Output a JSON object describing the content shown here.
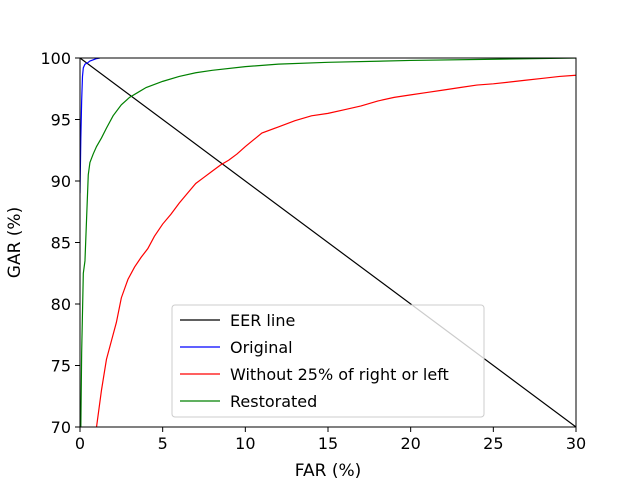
{
  "chart_data": {
    "type": "line",
    "title": "",
    "xlabel": "FAR (%)",
    "ylabel": "GAR (%)",
    "xlim": [
      0,
      30
    ],
    "ylim": [
      70,
      100
    ],
    "xticks": [
      0,
      5,
      10,
      15,
      20,
      25,
      30
    ],
    "yticks": [
      70,
      75,
      80,
      85,
      90,
      95,
      100
    ],
    "grid": false,
    "legend_position": "bottom-center",
    "series": [
      {
        "name": "EER line",
        "color": "#000000",
        "x": [
          0,
          30
        ],
        "y": [
          100,
          70
        ]
      },
      {
        "name": "Original",
        "color": "#0000ff",
        "x": [
          0,
          0.05,
          0.1,
          0.15,
          0.2,
          0.3,
          0.45,
          0.6,
          0.8,
          1.0,
          1.2
        ],
        "y": [
          89,
          93.5,
          96.5,
          98.5,
          99.2,
          99.5,
          99.6,
          99.75,
          99.85,
          99.95,
          100
        ]
      },
      {
        "name": "Without 25% of right or left",
        "color": "#ff0000",
        "x": [
          1,
          1.3,
          1.6,
          1.9,
          2.2,
          2.5,
          2.9,
          3.3,
          3.7,
          4.1,
          4.5,
          5,
          5.5,
          6,
          6.5,
          7,
          7.5,
          8,
          8.5,
          9,
          9.5,
          10,
          11,
          12,
          13,
          14,
          15,
          16,
          17,
          18,
          19,
          20,
          21,
          22,
          23,
          24,
          25,
          26,
          27,
          28,
          29,
          30
        ],
        "y": [
          70,
          73,
          75.5,
          77,
          78.5,
          80.5,
          82,
          83,
          83.8,
          84.5,
          85.5,
          86.5,
          87.3,
          88.2,
          89,
          89.8,
          90.3,
          90.8,
          91.3,
          91.7,
          92.2,
          92.8,
          93.9,
          94.4,
          94.9,
          95.3,
          95.5,
          95.8,
          96.1,
          96.5,
          96.8,
          97,
          97.2,
          97.4,
          97.6,
          97.8,
          97.9,
          98.05,
          98.2,
          98.35,
          98.5,
          98.6
        ]
      },
      {
        "name": "Restorated",
        "color": "#008000",
        "x": [
          0.05,
          0.1,
          0.2,
          0.3,
          0.4,
          0.5,
          0.6,
          0.8,
          1.0,
          1.3,
          1.6,
          2.0,
          2.5,
          3.0,
          3.5,
          4.0,
          4.5,
          5.0,
          6.0,
          7.0,
          8.0,
          10,
          12,
          15,
          20,
          25,
          30
        ],
        "y": [
          70,
          76,
          82.5,
          83.5,
          87,
          90.5,
          91.5,
          92.2,
          92.8,
          93.5,
          94.3,
          95.3,
          96.2,
          96.8,
          97.2,
          97.6,
          97.85,
          98.1,
          98.5,
          98.8,
          99.0,
          99.3,
          99.5,
          99.65,
          99.8,
          99.9,
          100
        ]
      }
    ]
  }
}
